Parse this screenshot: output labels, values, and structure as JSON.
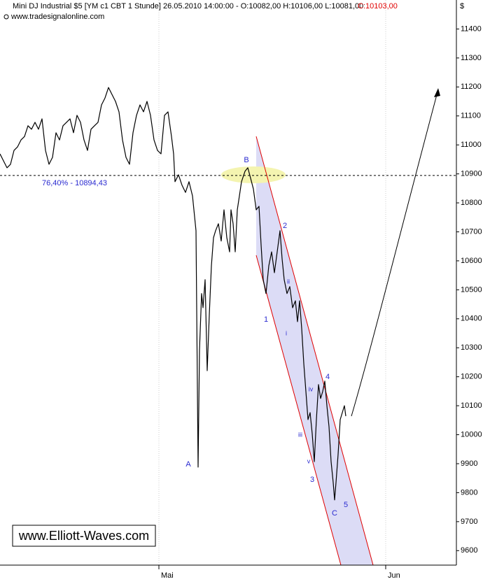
{
  "chart_data": {
    "type": "line",
    "title": "Mini DJ Industrial $5 [YM c1 CBT  1 Stunde] 26.05.2010 14:00:00 - O:10082,00 H:10106,00 L:10081,00",
    "close_label": "C:10103,00",
    "source": "www.tradesignalonline.com",
    "currency": "$",
    "watermark": "www.Elliott-Waves.com",
    "x": [
      0,
      2.5,
      5,
      7.5,
      10,
      12.5,
      15,
      17.5,
      20,
      22.5,
      25,
      27.5,
      30,
      32.5,
      35,
      37.5,
      40,
      42.5,
      45,
      47.5,
      50,
      52.5,
      55,
      57.5,
      60,
      62.5,
      65,
      67.5,
      70,
      72.5,
      75,
      77.5,
      80,
      82.5,
      85,
      87.5,
      90,
      92.5,
      95,
      97.5,
      100,
      102.5,
      105,
      107.5,
      110,
      112.5,
      115,
      117.5,
      120,
      122.5,
      124,
      125,
      127.5,
      130,
      132.5,
      135,
      137.5,
      140,
      141.5,
      142.5,
      144,
      145,
      146.5,
      148,
      149.5,
      151,
      152.5,
      154,
      156,
      158,
      160,
      162,
      164,
      165,
      166.5,
      168,
      169.5,
      171,
      172.5,
      175,
      177,
      179,
      181,
      183,
      185,
      186.5,
      188,
      190,
      192,
      194,
      196,
      198,
      200,
      201.5,
      203,
      205,
      207,
      209,
      211,
      212.5,
      214,
      215.5,
      217,
      218.5,
      220,
      221.5,
      223,
      224.5,
      226,
      227.5,
      229,
      230.5,
      232,
      233.5,
      235,
      236.5,
      238,
      239,
      240,
      241.5,
      243,
      244.5,
      246,
      247
    ],
    "series": [
      {
        "color": "#000000",
        "values": [
          10969,
          10945,
          10921,
          10933,
          10981,
          10993,
          11017,
          11029,
          11066,
          11054,
          11078,
          11054,
          11090,
          10981,
          10933,
          10957,
          11042,
          11017,
          11066,
          11078,
          11090,
          11042,
          11102,
          11078,
          11017,
          10981,
          11054,
          11066,
          11078,
          11138,
          11162,
          11198,
          11174,
          11150,
          11114,
          11017,
          10957,
          10933,
          11042,
          11102,
          11138,
          11114,
          11150,
          11102,
          11017,
          10981,
          10969,
          11102,
          11114,
          11029,
          10969,
          10873,
          10897,
          10861,
          10836,
          10873,
          10824,
          10704,
          9888,
          10293,
          10487,
          10438,
          10535,
          10221,
          10414,
          10583,
          10680,
          10704,
          10728,
          10668,
          10776,
          10680,
          10631,
          10776,
          10728,
          10631,
          10776,
          10824,
          10873,
          10909,
          10921,
          10885,
          10848,
          10776,
          10788,
          10655,
          10535,
          10487,
          10583,
          10631,
          10559,
          10631,
          10704,
          10607,
          10535,
          10487,
          10511,
          10438,
          10462,
          10390,
          10462,
          10366,
          10245,
          10149,
          10052,
          10076,
          10004,
          9907,
          10052,
          10173,
          10125,
          10149,
          10185,
          10100,
          10028,
          9907,
          9835,
          9775,
          9835,
          9932,
          10052,
          10076,
          10100,
          10064
        ]
      }
    ],
    "hline": {
      "value": 10894.43,
      "label": "76,40% - 10894,43",
      "color": "#2a2ad0"
    },
    "xlim": [
      0,
      326
    ],
    "xticks": [
      {
        "value": 113.5,
        "label": "Mai"
      },
      {
        "value": 275.5,
        "label": "Jun"
      }
    ],
    "ylim": [
      9550,
      11500
    ],
    "yticks": [
      9600,
      9700,
      9800,
      9900,
      10000,
      10100,
      10200,
      10300,
      10400,
      10500,
      10600,
      10700,
      10800,
      10900,
      11000,
      11100,
      11200,
      11300,
      11400
    ],
    "wave_labels": [
      "A",
      "B",
      "1",
      "2",
      "i",
      "ii",
      "iii",
      "iv",
      "v",
      "3",
      "4",
      "C",
      "5"
    ]
  }
}
